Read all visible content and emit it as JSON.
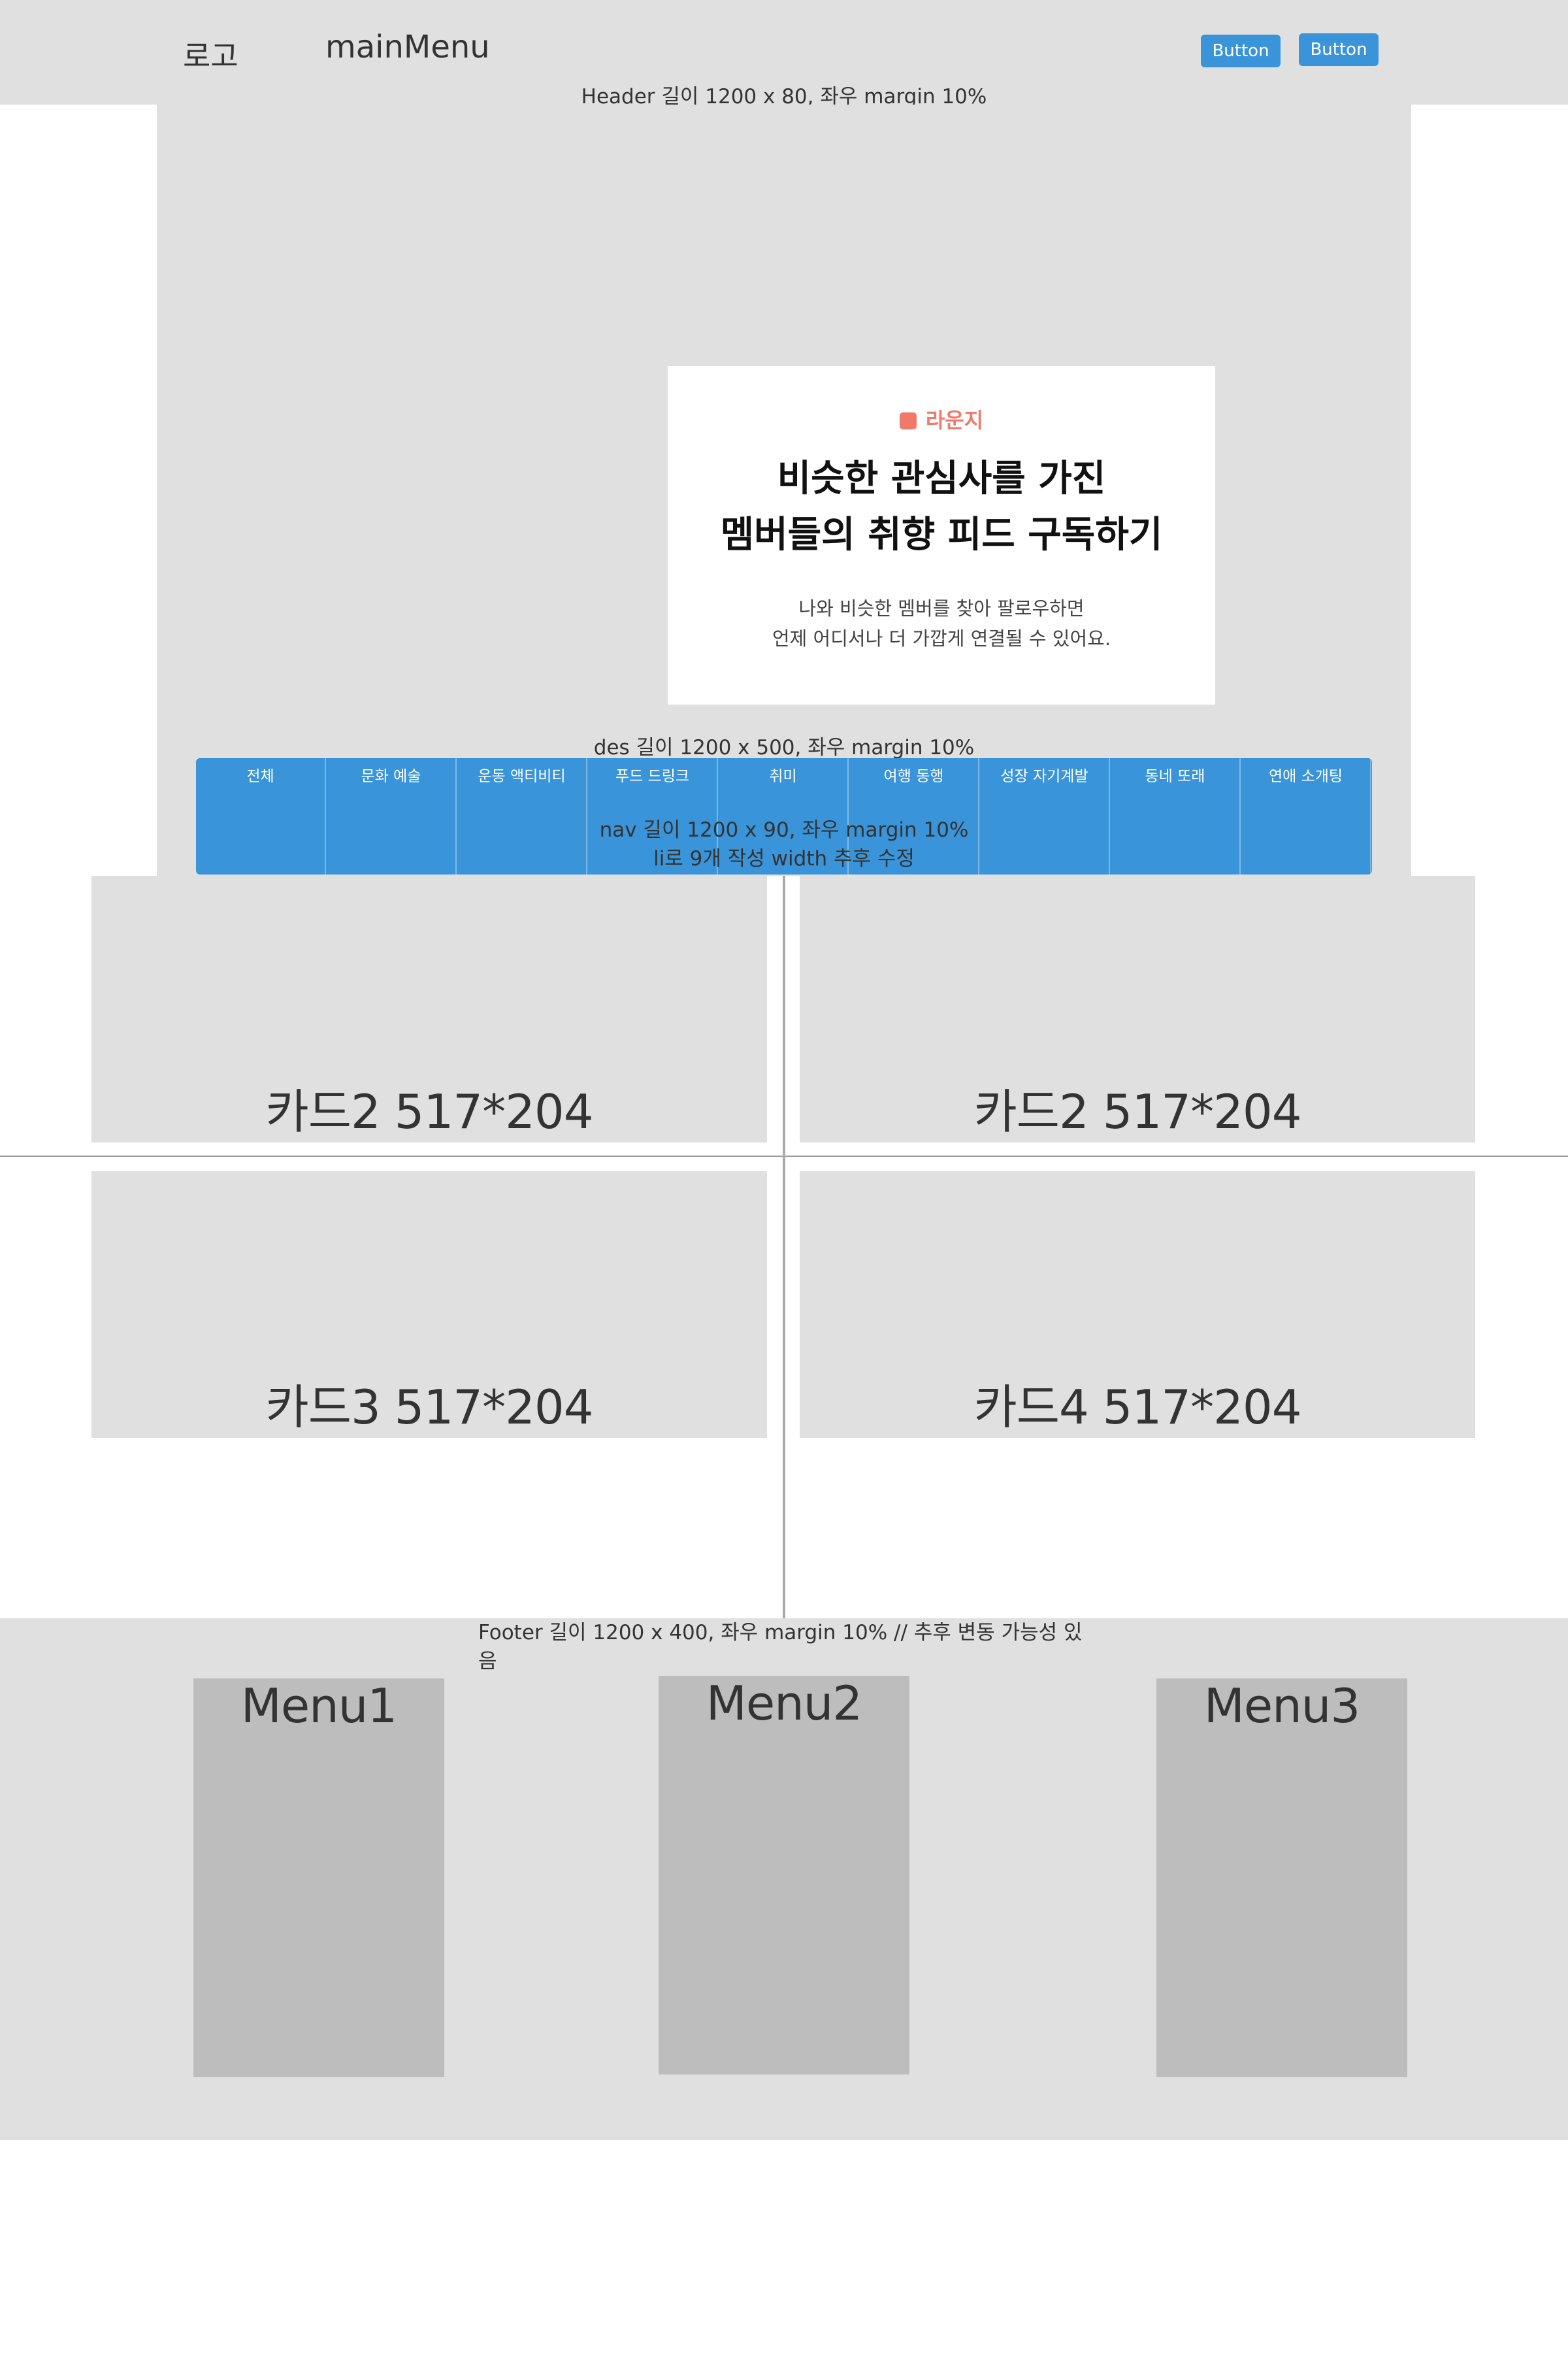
{
  "header": {
    "logo": "로고",
    "main_menu": "mainMenu",
    "buttons": [
      "Button",
      "Button"
    ],
    "note": "Header 길이 1200 x 80, 좌우 margin 10%"
  },
  "des": {
    "badge": "라운지",
    "title_line1": "비슷한 관심사를 가진",
    "title_line2": "멤버들의 취향 피드 구독하기",
    "desc_line1": "나와 비슷한 멤버를 찾아 팔로우하면",
    "desc_line2": "언제 어디서나 더 가깝게 연결될 수 있어요.",
    "note": "des 길이 1200 x 500, 좌우 margin 10%",
    "accent_color": "#ef7a6a"
  },
  "nav": {
    "items": [
      "전체",
      "문화 예술",
      "운동 액티비티",
      "푸드 드링크",
      "취미",
      "여행 동행",
      "성장 자기계발",
      "동네 또래",
      "연애 소개팅"
    ],
    "note_line1": "nav 길이 1200 x 90, 좌우 margin 10%",
    "note_line2": "li로 9개 작성 width 추후 수정",
    "color": "#3a94d9"
  },
  "cards": [
    {
      "label": "카드2  517*204"
    },
    {
      "label": "카드2  517*204"
    },
    {
      "label": "카드3  517*204"
    },
    {
      "label": "카드4  517*204"
    }
  ],
  "footer": {
    "note": "Footer  길이 1200 x 400, 좌우 margin 10% // 추후 변동 가능성 있음",
    "menus": [
      "Menu1",
      "Menu2",
      "Menu3"
    ]
  }
}
